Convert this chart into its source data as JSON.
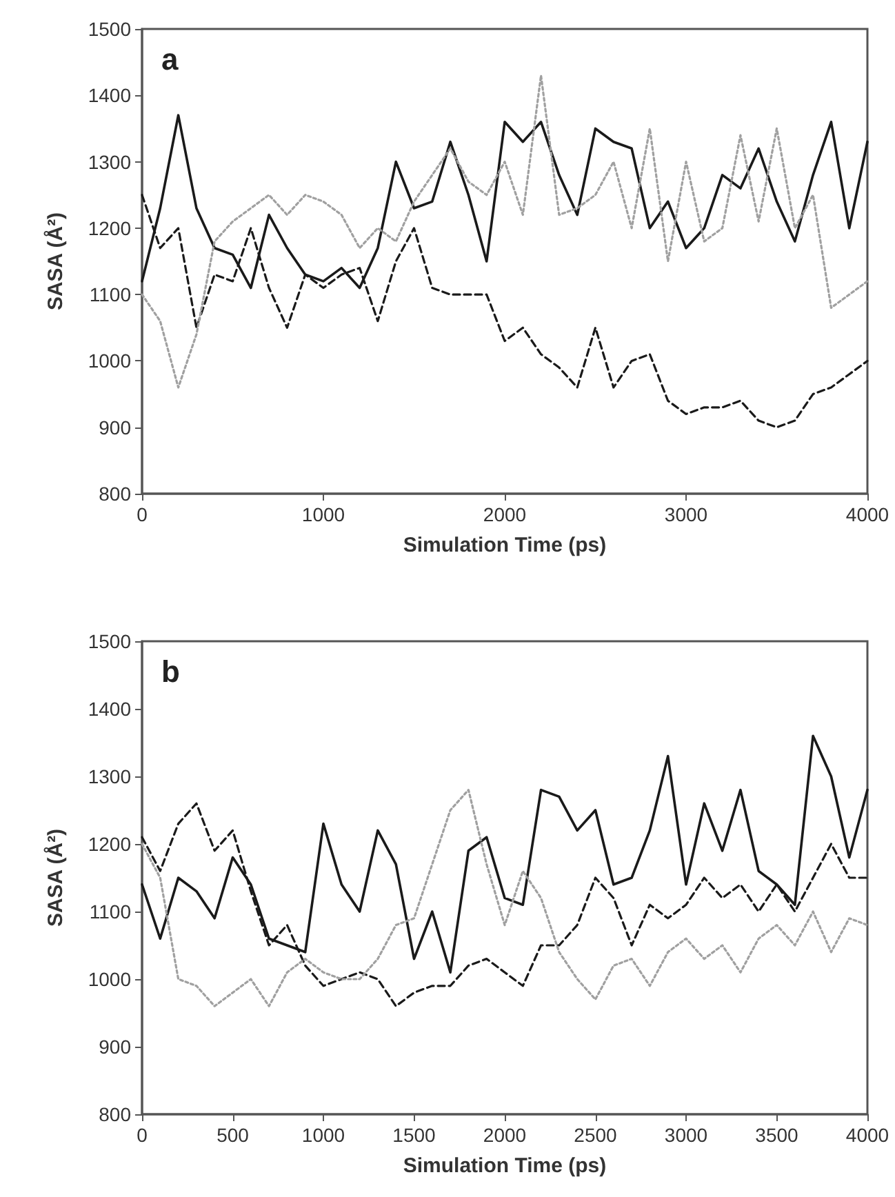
{
  "chart_data": [
    {
      "type": "line",
      "title": "a",
      "xlabel": "Simulation Time (ps)",
      "ylabel": "SASA (Å²)",
      "x": [
        0,
        100,
        200,
        300,
        400,
        500,
        600,
        700,
        800,
        900,
        1000,
        1100,
        1200,
        1300,
        1400,
        1500,
        1600,
        1700,
        1800,
        1900,
        2000,
        2100,
        2200,
        2300,
        2400,
        2500,
        2600,
        2700,
        2800,
        2900,
        3000,
        3100,
        3200,
        3300,
        3400,
        3500,
        3600,
        3700,
        3800,
        3900,
        4000
      ],
      "series": [
        {
          "color": "#1a1a1a",
          "line_style": "solid",
          "values": [
            1120,
            1230,
            1370,
            1230,
            1170,
            1160,
            1110,
            1220,
            1170,
            1130,
            1120,
            1140,
            1110,
            1170,
            1300,
            1230,
            1240,
            1330,
            1250,
            1150,
            1360,
            1330,
            1360,
            1280,
            1220,
            1350,
            1330,
            1320,
            1200,
            1240,
            1170,
            1200,
            1280,
            1260,
            1320,
            1240,
            1180,
            1280,
            1360,
            1200,
            1330
          ]
        },
        {
          "color": "#1a1a1a",
          "line_style": "dashed",
          "values": [
            1250,
            1170,
            1200,
            1050,
            1130,
            1120,
            1200,
            1110,
            1050,
            1130,
            1110,
            1130,
            1140,
            1060,
            1150,
            1200,
            1110,
            1100,
            1100,
            1100,
            1030,
            1050,
            1010,
            990,
            960,
            1050,
            960,
            1000,
            1010,
            940,
            920,
            930,
            930,
            940,
            910,
            900,
            910,
            950,
            960,
            980,
            1000
          ]
        },
        {
          "color": "#a0a0a0",
          "line_style": "dotted",
          "values": [
            1100,
            1060,
            960,
            1040,
            1180,
            1210,
            1230,
            1250,
            1220,
            1250,
            1240,
            1220,
            1170,
            1200,
            1180,
            1240,
            1280,
            1320,
            1270,
            1250,
            1300,
            1220,
            1430,
            1220,
            1230,
            1250,
            1300,
            1200,
            1350,
            1150,
            1300,
            1180,
            1200,
            1340,
            1210,
            1350,
            1200,
            1250,
            1080,
            1100,
            1120
          ]
        }
      ],
      "xlim": [
        0,
        4000
      ],
      "xticks": [
        0,
        1000,
        2000,
        3000,
        4000
      ],
      "ylim": [
        800,
        1500
      ],
      "yticks": [
        800,
        900,
        1000,
        1100,
        1200,
        1300,
        1400,
        1500
      ]
    },
    {
      "type": "line",
      "title": "b",
      "xlabel": "Simulation Time (ps)",
      "ylabel": "SASA (Å²)",
      "x": [
        0,
        100,
        200,
        300,
        400,
        500,
        600,
        700,
        800,
        900,
        1000,
        1100,
        1200,
        1300,
        1400,
        1500,
        1600,
        1700,
        1800,
        1900,
        2000,
        2100,
        2200,
        2300,
        2400,
        2500,
        2600,
        2700,
        2800,
        2900,
        3000,
        3100,
        3200,
        3300,
        3400,
        3500,
        3600,
        3700,
        3800,
        3900,
        4000
      ],
      "series": [
        {
          "color": "#1a1a1a",
          "line_style": "solid",
          "values": [
            1140,
            1060,
            1150,
            1130,
            1090,
            1180,
            1140,
            1060,
            1050,
            1040,
            1230,
            1140,
            1100,
            1220,
            1170,
            1030,
            1100,
            1010,
            1190,
            1210,
            1120,
            1110,
            1280,
            1270,
            1220,
            1250,
            1140,
            1150,
            1220,
            1330,
            1140,
            1260,
            1190,
            1280,
            1160,
            1140,
            1110,
            1360,
            1300,
            1180,
            1280
          ]
        },
        {
          "color": "#1a1a1a",
          "line_style": "dashed",
          "values": [
            1210,
            1160,
            1230,
            1260,
            1190,
            1220,
            1130,
            1050,
            1080,
            1020,
            990,
            1000,
            1010,
            1000,
            960,
            980,
            990,
            990,
            1020,
            1030,
            1010,
            990,
            1050,
            1050,
            1080,
            1150,
            1120,
            1050,
            1110,
            1090,
            1110,
            1150,
            1120,
            1140,
            1100,
            1140,
            1100,
            1150,
            1200,
            1150,
            1150
          ]
        },
        {
          "color": "#a0a0a0",
          "line_style": "dotted",
          "values": [
            1200,
            1150,
            1000,
            990,
            960,
            980,
            1000,
            960,
            1010,
            1030,
            1010,
            1000,
            1000,
            1030,
            1080,
            1090,
            1170,
            1250,
            1280,
            1170,
            1080,
            1160,
            1120,
            1040,
            1000,
            970,
            1020,
            1030,
            990,
            1040,
            1060,
            1030,
            1050,
            1010,
            1060,
            1080,
            1050,
            1100,
            1040,
            1090,
            1080
          ]
        }
      ],
      "xlim": [
        0,
        4000
      ],
      "xticks": [
        0,
        500,
        1000,
        1500,
        2000,
        2500,
        3000,
        3500,
        4000
      ],
      "ylim": [
        800,
        1500
      ],
      "yticks": [
        800,
        900,
        1000,
        1100,
        1200,
        1300,
        1400,
        1500
      ]
    }
  ]
}
